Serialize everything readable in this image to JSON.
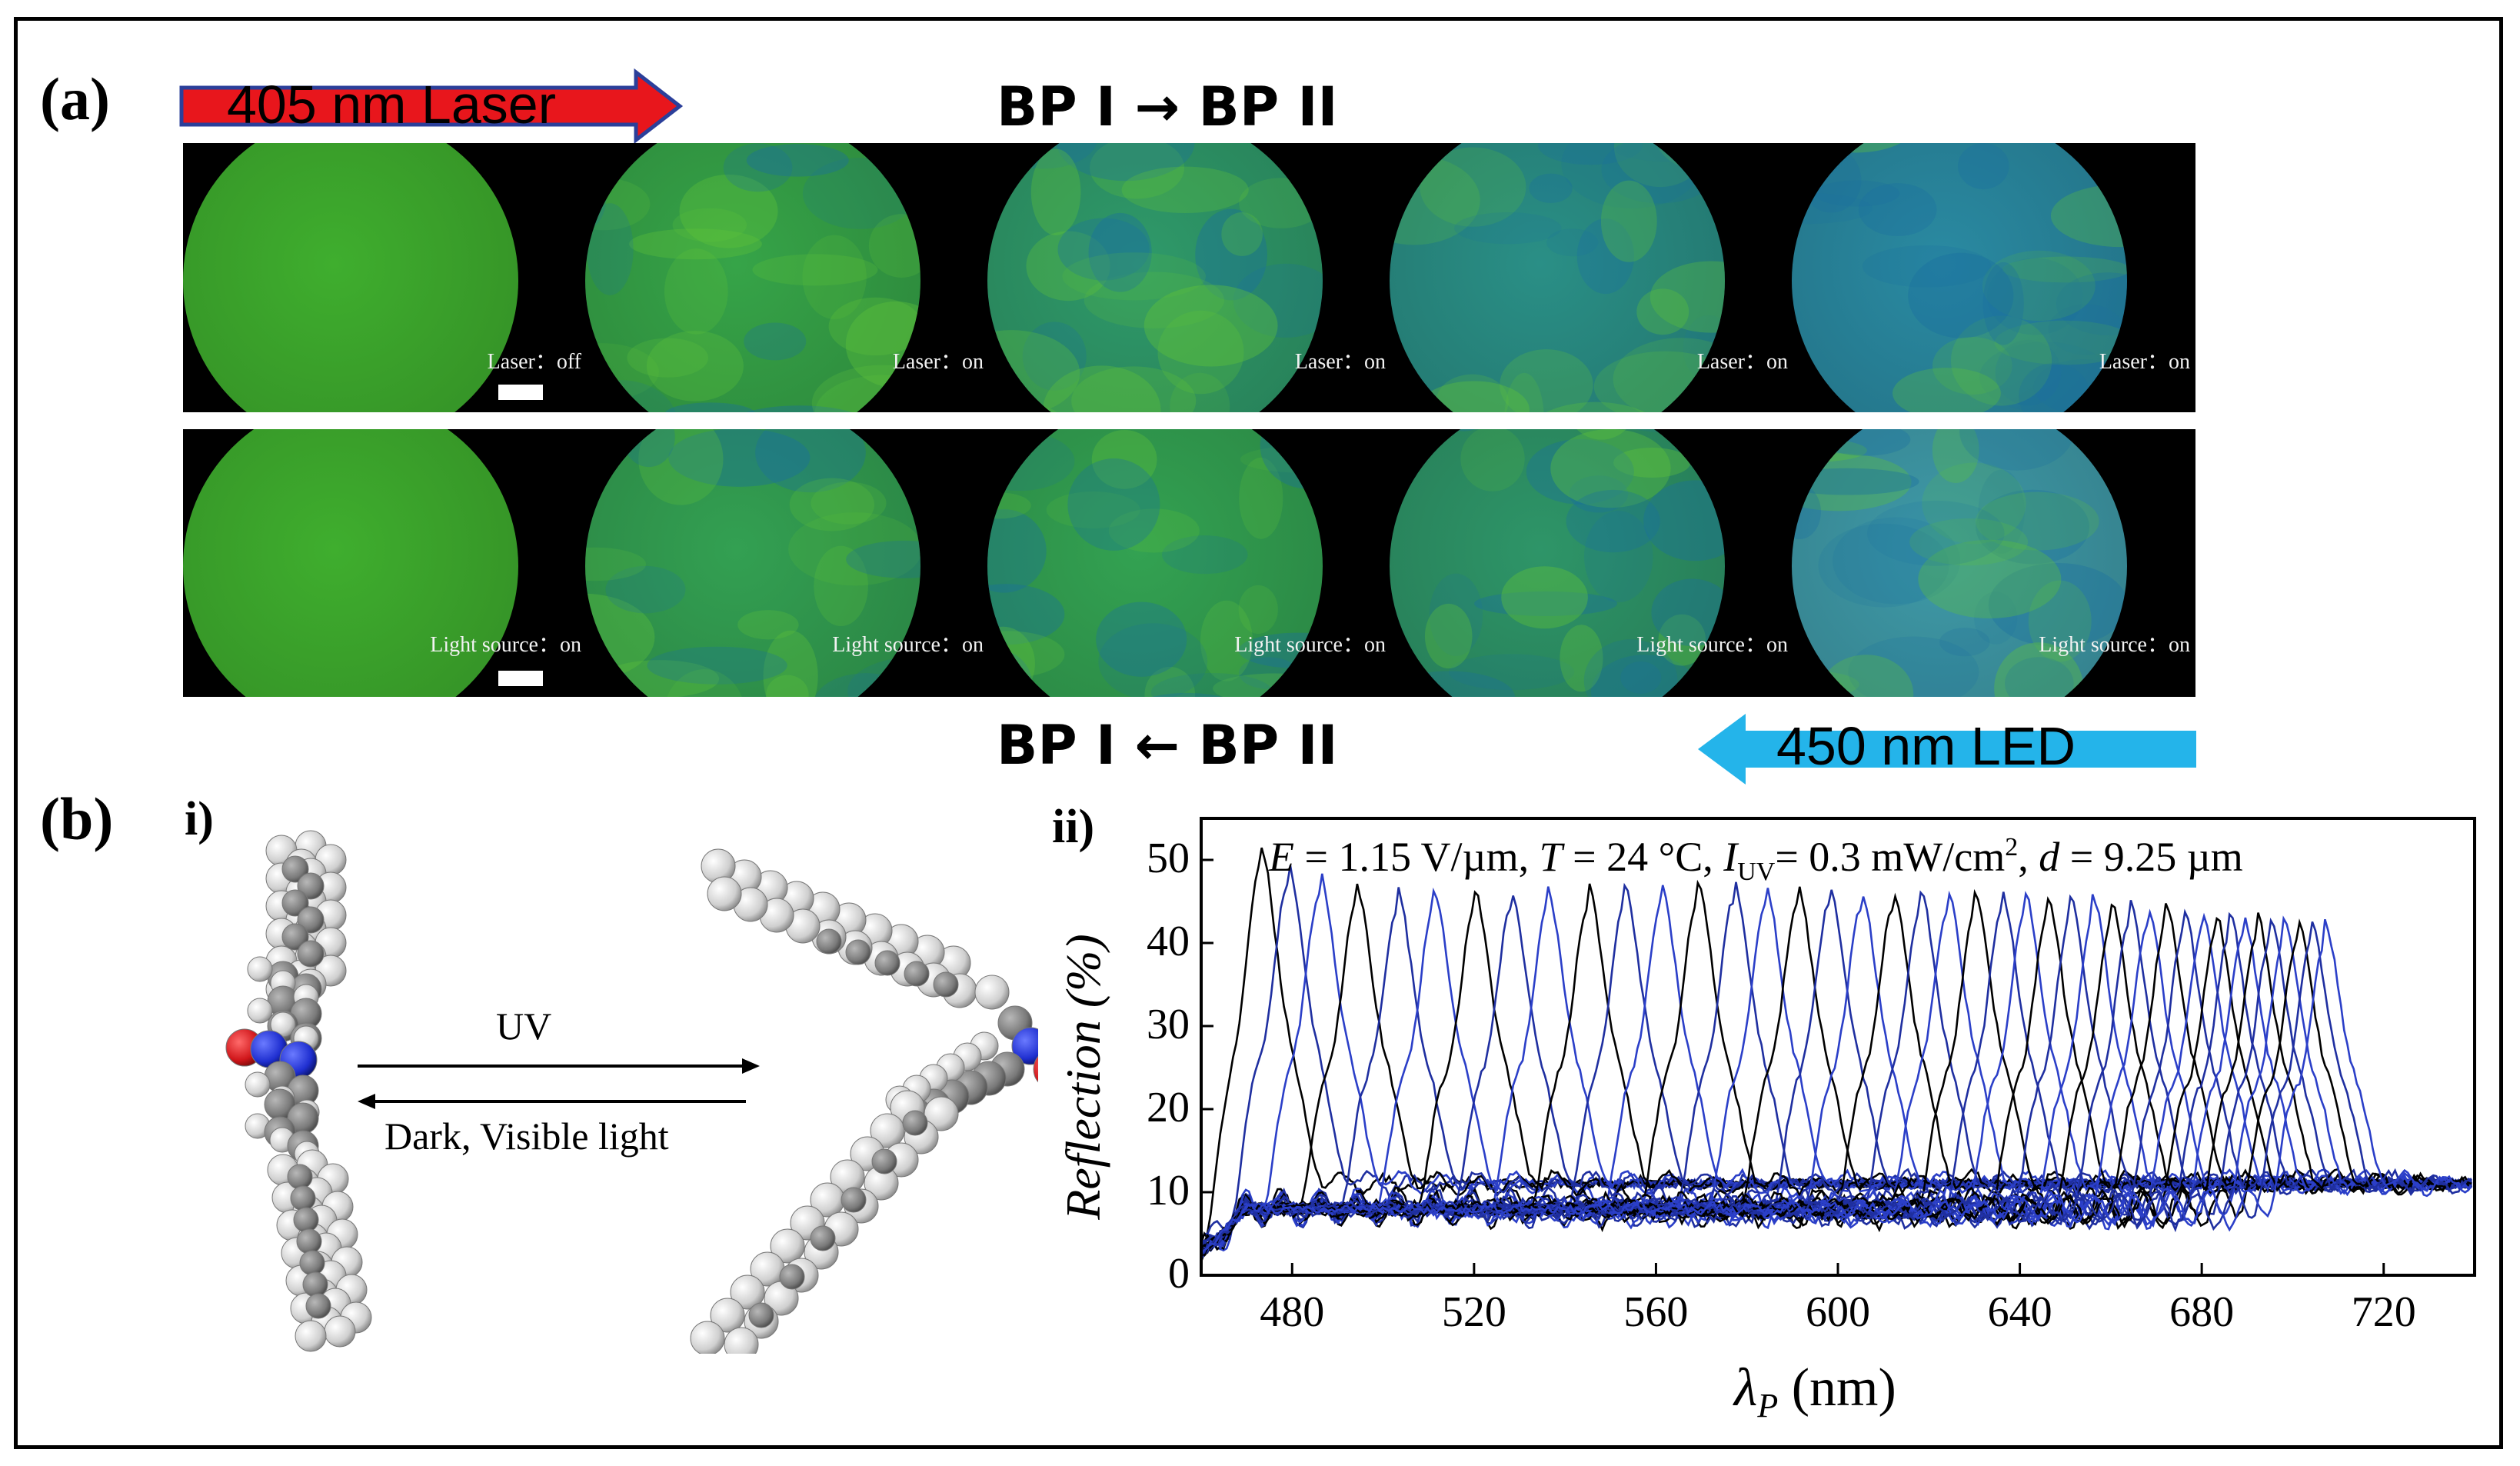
{
  "panel_a": {
    "label": "(a)",
    "laser_arrow_label": "405 nm Laser",
    "top_heading": "BP I → BP II",
    "bottom_heading": "BP I ← BP II",
    "led_arrow_label": "450 nm LED",
    "top_row_captions": [
      "Laser：off",
      "Laser：on",
      "Laser：on",
      "Laser：on",
      "Laser：on"
    ],
    "bottom_row_captions": [
      "Light source：on",
      "Light source：on",
      "Light source：on",
      "Light source：on",
      "Light source：on"
    ],
    "top_row_colors": [
      "#3fae2e",
      "#36a448",
      "#2f9a6a",
      "#2a8f86",
      "#2a8aa2"
    ],
    "bottom_row_colors": [
      "#3fae2e",
      "#33a052",
      "#33a252",
      "#2e9568",
      "#3f9aa8"
    ]
  },
  "panel_b": {
    "label": "(b)",
    "sub_i": "i)",
    "sub_ii": "ii)",
    "uv_label": "UV",
    "dark_label": "Dark, Visible light"
  },
  "chart_data": {
    "type": "line",
    "condition_text": "E = 1.15 V/µm, T = 24 °C, I_UV = 0.3 mW/cm², d = 9.25 µm",
    "condition_parts": {
      "E": "E",
      "e_rest": " = 1.15 V/µm, ",
      "T": "T",
      "t_rest": " = 24 °C, ",
      "I": "I",
      "i_sub": "UV",
      "i_rest": "= 0.3 mW/cm",
      "i_sup": "2",
      "i_tail": ", ",
      "d": "d",
      "d_rest": " = 9.25 µm"
    },
    "xlabel_symbol": "λ",
    "xlabel_sub": "P",
    "xlabel_unit": " (nm)",
    "ylabel": "Reflection (%)",
    "xlim": [
      460,
      740
    ],
    "ylim": [
      0,
      55
    ],
    "xticks": [
      480,
      520,
      560,
      600,
      640,
      680,
      720
    ],
    "yticks": [
      0,
      10,
      20,
      30,
      40,
      50
    ],
    "series_colors": [
      "#000000",
      "#1f2fa0",
      "#2b3fc8"
    ],
    "peak_wavelengths": [
      473,
      479,
      486,
      494,
      503,
      511,
      520,
      528,
      536,
      545,
      553,
      561,
      569,
      577,
      584,
      591,
      598,
      605,
      612,
      618,
      624,
      630,
      636,
      641,
      646,
      651,
      656,
      660,
      664,
      668,
      672,
      676,
      680,
      683,
      686,
      689,
      692,
      695,
      698,
      701,
      704,
      707
    ],
    "peak_reflections": [
      48,
      46,
      45,
      43.5,
      43,
      43,
      43,
      43,
      43,
      43.5,
      43.5,
      43.5,
      44,
      44,
      43.5,
      43.5,
      43.5,
      43,
      43,
      43,
      43,
      42.5,
      42.5,
      42.5,
      42,
      42,
      42,
      41.5,
      41.5,
      41,
      41,
      40.5,
      40.5,
      40,
      40,
      40,
      40,
      39.5,
      39.5,
      39.5,
      39,
      39
    ],
    "baseline": 10
  }
}
